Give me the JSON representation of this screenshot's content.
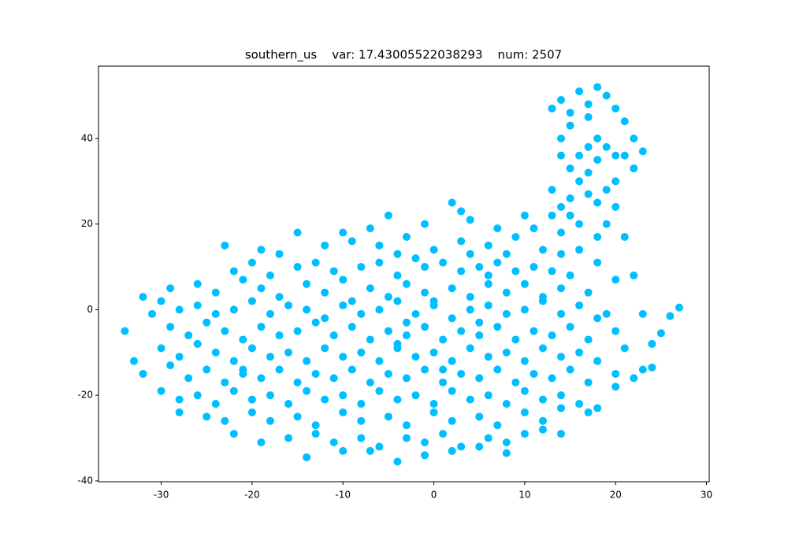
{
  "chart_data": {
    "type": "scatter",
    "title": "southern_us    var: 17.43005522038293    num: 2507",
    "color": "#00bfff",
    "xlim": [
      -36.9,
      30.3
    ],
    "xticks": [
      -30,
      -20,
      -10,
      0,
      10,
      20,
      30
    ],
    "ylim": [
      -40.2,
      56.9
    ],
    "yticks": [
      -40,
      -20,
      0,
      20,
      40
    ],
    "x": [
      13,
      14,
      16,
      18,
      19,
      20,
      21,
      22,
      23,
      22,
      20,
      19,
      17,
      16,
      15,
      14,
      14,
      15,
      17,
      18,
      19,
      20,
      17,
      16,
      13,
      14,
      15,
      16,
      14,
      13,
      18,
      19,
      20,
      21,
      18,
      16,
      17,
      15,
      21,
      15,
      17,
      18,
      -5,
      -1,
      2,
      4,
      7,
      10,
      11,
      -7,
      3,
      -23,
      -19,
      -15,
      -12,
      -9,
      -6,
      -3,
      0,
      3,
      6,
      9,
      12,
      -17,
      4,
      8,
      14,
      -10,
      -4,
      -22,
      -20,
      -18,
      -15,
      -13,
      -11,
      -8,
      -6,
      -4,
      -1,
      1,
      3,
      5,
      7,
      9,
      11,
      13,
      15,
      18,
      -2,
      6,
      -29,
      -26,
      -24,
      -21,
      -19,
      -17,
      -14,
      -12,
      -10,
      -7,
      -5,
      -3,
      -1,
      2,
      4,
      6,
      8,
      10,
      12,
      14,
      17,
      20,
      22,
      -9,
      0,
      -32,
      -30,
      -31,
      -28,
      -26,
      -24,
      -22,
      -20,
      -18,
      -16,
      -14,
      -12,
      -10,
      -8,
      -6,
      -4,
      -2,
      0,
      2,
      4,
      6,
      8,
      10,
      12,
      14,
      16,
      18,
      19,
      23,
      27,
      26,
      -3,
      5,
      -34,
      -29,
      -27,
      -25,
      -23,
      -21,
      -19,
      -17,
      -15,
      -13,
      -11,
      -9,
      -7,
      -5,
      -3,
      -1,
      1,
      3,
      5,
      7,
      9,
      11,
      13,
      15,
      17,
      20,
      25,
      -4,
      -33,
      -30,
      -28,
      -26,
      -24,
      -22,
      -20,
      -18,
      -16,
      -14,
      -12,
      -10,
      -8,
      -6,
      -4,
      -2,
      0,
      2,
      4,
      6,
      8,
      10,
      12,
      14,
      16,
      18,
      21,
      24,
      -21,
      1,
      -32,
      -29,
      -27,
      -25,
      -23,
      -21,
      -19,
      -17,
      -15,
      -13,
      -11,
      -9,
      -7,
      -5,
      -3,
      -1,
      1,
      3,
      5,
      7,
      9,
      11,
      13,
      15,
      17,
      20,
      23,
      24,
      22,
      -30,
      -28,
      -26,
      -24,
      -22,
      -20,
      -18,
      -16,
      -14,
      -12,
      -10,
      -8,
      -6,
      -4,
      -2,
      0,
      2,
      4,
      6,
      8,
      10,
      12,
      14,
      16,
      18,
      20,
      -28,
      -25,
      -23,
      -20,
      -18,
      -15,
      -13,
      -10,
      -8,
      -5,
      -3,
      0,
      2,
      5,
      7,
      10,
      12,
      14,
      17,
      -22,
      -19,
      -16,
      -13,
      -11,
      -8,
      -6,
      -3,
      -1,
      1,
      3,
      6,
      8,
      10,
      12,
      14,
      -14,
      -10,
      -7,
      -4,
      -1,
      2,
      5,
      8
    ],
    "values": [
      47,
      49,
      51,
      52,
      50,
      47,
      44,
      40,
      37,
      33,
      30,
      28,
      27,
      30,
      33,
      36,
      40,
      43,
      45,
      40,
      38,
      36,
      38,
      36,
      28,
      24,
      22,
      20,
      18,
      22,
      25,
      20,
      24,
      17,
      17,
      14,
      48,
      46,
      36,
      26,
      32,
      35,
      22,
      20,
      25,
      21,
      19,
      22,
      19,
      19,
      23,
      15,
      14,
      18,
      15,
      16,
      15,
      17,
      14,
      16,
      15,
      17,
      14,
      13,
      13,
      13,
      13,
      18,
      13,
      9,
      11,
      8,
      10,
      11,
      9,
      10,
      11,
      8,
      10,
      11,
      9,
      10,
      11,
      9,
      10,
      9,
      8,
      11,
      12,
      8,
      5,
      6,
      4,
      7,
      5,
      3,
      6,
      4,
      7,
      5,
      3,
      6,
      4,
      5,
      3,
      6,
      4,
      6,
      3,
      5,
      4,
      7,
      8,
      2,
      2,
      3,
      2,
      -1,
      0,
      1,
      -1,
      0,
      2,
      -1,
      1,
      0,
      -2,
      1,
      -1,
      0,
      2,
      -1,
      1,
      -2,
      0,
      1,
      -1,
      0,
      2,
      -1,
      1,
      -2,
      -1,
      -1,
      0.5,
      -1.5,
      -3,
      -3,
      -5,
      -4,
      -6,
      -3,
      -5,
      -7,
      -4,
      -6,
      -5,
      -3,
      -6,
      -4,
      -7,
      -5,
      -6,
      -4,
      -7,
      -5,
      -6,
      -4,
      -7,
      -5,
      -6,
      -4,
      -7,
      -5,
      -5.5,
      -8,
      -12,
      -9,
      -11,
      -8,
      -10,
      -12,
      -9,
      -11,
      -10,
      -12,
      -9,
      -11,
      -10,
      -12,
      -9,
      -11,
      -10,
      -12,
      -9,
      -11,
      -10,
      -12,
      -9,
      -11,
      -10,
      -12,
      -9,
      -8,
      -14,
      -14,
      -15,
      -13,
      -16,
      -14,
      -17,
      -15,
      -16,
      -14,
      -17,
      -15,
      -16,
      -14,
      -17,
      -15,
      -16,
      -14,
      -17,
      -15,
      -16,
      -14,
      -17,
      -15,
      -16,
      -14,
      -17,
      -15,
      -14,
      -13.5,
      -16,
      -19,
      -21,
      -20,
      -22,
      -19,
      -21,
      -20,
      -22,
      -19,
      -21,
      -20,
      -22,
      -19,
      -21,
      -20,
      -22,
      -19,
      -21,
      -20,
      -22,
      -19,
      -21,
      -20,
      -22,
      -23,
      -18,
      -24,
      -25,
      -26,
      -24,
      -26,
      -25,
      -27,
      -24,
      -26,
      -25,
      -27,
      -24,
      -26,
      -25,
      -27,
      -24,
      -26,
      -23,
      -24,
      -29,
      -31,
      -30,
      -29,
      -31,
      -30,
      -32,
      -30,
      -31,
      -29,
      -32,
      -30,
      -31,
      -29,
      -28,
      -29,
      -34.5,
      -33,
      -33,
      -35.5,
      -34,
      -33,
      -32,
      -33.5
    ]
  }
}
